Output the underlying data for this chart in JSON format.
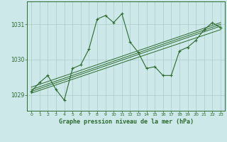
{
  "title": "Graphe pression niveau de la mer (hPa)",
  "bg_color": "#cce8e8",
  "grid_color": "#aacccc",
  "line_color": "#2d6a2d",
  "xlim": [
    -0.5,
    23.5
  ],
  "ylim": [
    1028.55,
    1031.65
  ],
  "yticks": [
    1029,
    1030,
    1031
  ],
  "xticks": [
    0,
    1,
    2,
    3,
    4,
    5,
    6,
    7,
    8,
    9,
    10,
    11,
    12,
    13,
    14,
    15,
    16,
    17,
    18,
    19,
    20,
    21,
    22,
    23
  ],
  "main_series": [
    [
      0,
      1029.1
    ],
    [
      1,
      1029.35
    ],
    [
      2,
      1029.55
    ],
    [
      3,
      1029.15
    ],
    [
      4,
      1028.85
    ],
    [
      5,
      1029.75
    ],
    [
      6,
      1029.85
    ],
    [
      7,
      1030.3
    ],
    [
      8,
      1031.15
    ],
    [
      9,
      1031.25
    ],
    [
      10,
      1031.05
    ],
    [
      11,
      1031.3
    ],
    [
      12,
      1030.5
    ],
    [
      13,
      1030.2
    ],
    [
      14,
      1029.75
    ],
    [
      15,
      1029.8
    ],
    [
      16,
      1029.55
    ],
    [
      17,
      1029.55
    ],
    [
      18,
      1030.25
    ],
    [
      19,
      1030.35
    ],
    [
      20,
      1030.55
    ],
    [
      21,
      1030.85
    ],
    [
      22,
      1031.05
    ],
    [
      23,
      1030.9
    ]
  ],
  "trend_lines": [
    [
      [
        0,
        1029.05
      ],
      [
        23,
        1030.85
      ]
    ],
    [
      [
        0,
        1029.1
      ],
      [
        23,
        1030.95
      ]
    ],
    [
      [
        0,
        1029.15
      ],
      [
        23,
        1031.0
      ]
    ],
    [
      [
        0,
        1029.22
      ],
      [
        23,
        1031.05
      ]
    ]
  ]
}
